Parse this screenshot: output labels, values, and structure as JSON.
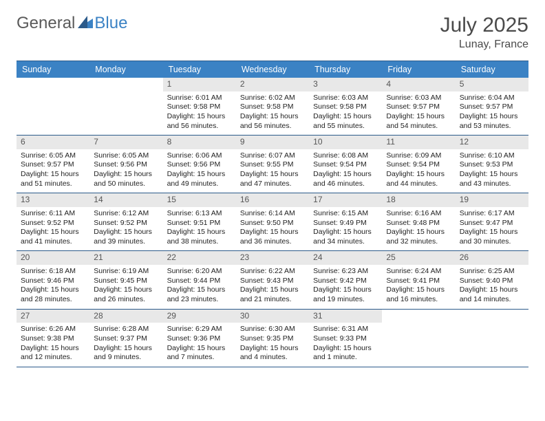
{
  "logo": {
    "general": "General",
    "blue": "Blue"
  },
  "title": {
    "month_year": "July 2025",
    "location": "Lunay, France"
  },
  "colors": {
    "header_bg": "#3b82c4",
    "border": "#2b5a8a",
    "num_bg": "#e8e8e8",
    "logo_gray": "#5a5a5a",
    "logo_blue": "#3b82c4"
  },
  "days": [
    "Sunday",
    "Monday",
    "Tuesday",
    "Wednesday",
    "Thursday",
    "Friday",
    "Saturday"
  ],
  "weeks": [
    [
      null,
      null,
      {
        "n": "1",
        "sr": "6:01 AM",
        "ss": "9:58 PM",
        "dl": "15 hours and 56 minutes."
      },
      {
        "n": "2",
        "sr": "6:02 AM",
        "ss": "9:58 PM",
        "dl": "15 hours and 56 minutes."
      },
      {
        "n": "3",
        "sr": "6:03 AM",
        "ss": "9:58 PM",
        "dl": "15 hours and 55 minutes."
      },
      {
        "n": "4",
        "sr": "6:03 AM",
        "ss": "9:57 PM",
        "dl": "15 hours and 54 minutes."
      },
      {
        "n": "5",
        "sr": "6:04 AM",
        "ss": "9:57 PM",
        "dl": "15 hours and 53 minutes."
      }
    ],
    [
      {
        "n": "6",
        "sr": "6:05 AM",
        "ss": "9:57 PM",
        "dl": "15 hours and 51 minutes."
      },
      {
        "n": "7",
        "sr": "6:05 AM",
        "ss": "9:56 PM",
        "dl": "15 hours and 50 minutes."
      },
      {
        "n": "8",
        "sr": "6:06 AM",
        "ss": "9:56 PM",
        "dl": "15 hours and 49 minutes."
      },
      {
        "n": "9",
        "sr": "6:07 AM",
        "ss": "9:55 PM",
        "dl": "15 hours and 47 minutes."
      },
      {
        "n": "10",
        "sr": "6:08 AM",
        "ss": "9:54 PM",
        "dl": "15 hours and 46 minutes."
      },
      {
        "n": "11",
        "sr": "6:09 AM",
        "ss": "9:54 PM",
        "dl": "15 hours and 44 minutes."
      },
      {
        "n": "12",
        "sr": "6:10 AM",
        "ss": "9:53 PM",
        "dl": "15 hours and 43 minutes."
      }
    ],
    [
      {
        "n": "13",
        "sr": "6:11 AM",
        "ss": "9:52 PM",
        "dl": "15 hours and 41 minutes."
      },
      {
        "n": "14",
        "sr": "6:12 AM",
        "ss": "9:52 PM",
        "dl": "15 hours and 39 minutes."
      },
      {
        "n": "15",
        "sr": "6:13 AM",
        "ss": "9:51 PM",
        "dl": "15 hours and 38 minutes."
      },
      {
        "n": "16",
        "sr": "6:14 AM",
        "ss": "9:50 PM",
        "dl": "15 hours and 36 minutes."
      },
      {
        "n": "17",
        "sr": "6:15 AM",
        "ss": "9:49 PM",
        "dl": "15 hours and 34 minutes."
      },
      {
        "n": "18",
        "sr": "6:16 AM",
        "ss": "9:48 PM",
        "dl": "15 hours and 32 minutes."
      },
      {
        "n": "19",
        "sr": "6:17 AM",
        "ss": "9:47 PM",
        "dl": "15 hours and 30 minutes."
      }
    ],
    [
      {
        "n": "20",
        "sr": "6:18 AM",
        "ss": "9:46 PM",
        "dl": "15 hours and 28 minutes."
      },
      {
        "n": "21",
        "sr": "6:19 AM",
        "ss": "9:45 PM",
        "dl": "15 hours and 26 minutes."
      },
      {
        "n": "22",
        "sr": "6:20 AM",
        "ss": "9:44 PM",
        "dl": "15 hours and 23 minutes."
      },
      {
        "n": "23",
        "sr": "6:22 AM",
        "ss": "9:43 PM",
        "dl": "15 hours and 21 minutes."
      },
      {
        "n": "24",
        "sr": "6:23 AM",
        "ss": "9:42 PM",
        "dl": "15 hours and 19 minutes."
      },
      {
        "n": "25",
        "sr": "6:24 AM",
        "ss": "9:41 PM",
        "dl": "15 hours and 16 minutes."
      },
      {
        "n": "26",
        "sr": "6:25 AM",
        "ss": "9:40 PM",
        "dl": "15 hours and 14 minutes."
      }
    ],
    [
      {
        "n": "27",
        "sr": "6:26 AM",
        "ss": "9:38 PM",
        "dl": "15 hours and 12 minutes."
      },
      {
        "n": "28",
        "sr": "6:28 AM",
        "ss": "9:37 PM",
        "dl": "15 hours and 9 minutes."
      },
      {
        "n": "29",
        "sr": "6:29 AM",
        "ss": "9:36 PM",
        "dl": "15 hours and 7 minutes."
      },
      {
        "n": "30",
        "sr": "6:30 AM",
        "ss": "9:35 PM",
        "dl": "15 hours and 4 minutes."
      },
      {
        "n": "31",
        "sr": "6:31 AM",
        "ss": "9:33 PM",
        "dl": "15 hours and 1 minute."
      },
      null,
      null
    ]
  ],
  "labels": {
    "sunrise": "Sunrise:",
    "sunset": "Sunset:",
    "daylight": "Daylight:"
  }
}
